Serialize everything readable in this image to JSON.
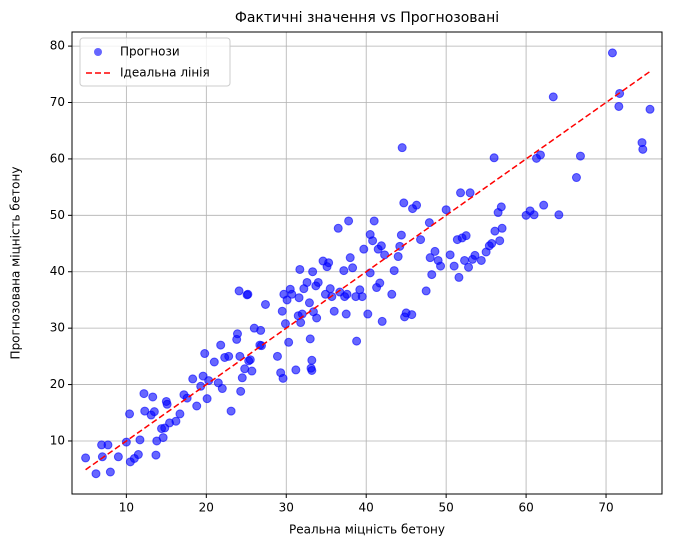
{
  "chart_data": {
    "type": "scatter",
    "title": "Фактичні значення vs Прогнозовані",
    "x_label": "Реальна міцність бетону",
    "y_label": "Прогнозована міцність бетону",
    "xlim": [
      3.2,
      77
    ],
    "ylim": [
      0.6,
      82.5
    ],
    "xticks": [
      10,
      20,
      30,
      40,
      50,
      60,
      70
    ],
    "yticks": [
      10,
      20,
      30,
      40,
      50,
      60,
      70,
      80
    ],
    "grid": true,
    "legend": "upper left",
    "series": [
      {
        "name": "Прогнози",
        "color": "#0000ff",
        "kind": "points",
        "x": [
          4.9,
          6.2,
          6.9,
          7.0,
          7.7,
          8.0,
          9.0,
          10.0,
          10.4,
          10.5,
          11.0,
          11.5,
          11.7,
          12.2,
          12.3,
          13.1,
          13.3,
          13.5,
          13.7,
          13.8,
          14.4,
          14.6,
          14.8,
          15.0,
          15.1,
          15.4,
          16.2,
          16.7,
          17.2,
          17.6,
          18.3,
          18.8,
          19.3,
          19.6,
          19.8,
          20.1,
          20.3,
          21.0,
          21.5,
          21.8,
          22.0,
          22.3,
          22.8,
          23.1,
          23.8,
          23.9,
          24.1,
          24.2,
          24.3,
          24.5,
          24.8,
          25.1,
          25.2,
          25.3,
          25.5,
          25.7,
          26.0,
          26.8,
          26.7,
          26.9,
          27.4,
          28.9,
          29.3,
          29.5,
          29.6,
          29.7,
          29.9,
          30.1,
          30.3,
          30.5,
          30.7,
          31.2,
          31.5,
          31.6,
          31.7,
          31.8,
          32.0,
          32.2,
          32.6,
          32.9,
          33.0,
          33.1,
          33.2,
          33.2,
          33.3,
          33.4,
          33.7,
          33.8,
          34.0,
          34.6,
          34.9,
          35.1,
          35.3,
          35.5,
          35.7,
          36.0,
          36.5,
          36.7,
          37.2,
          37.3,
          37.5,
          37.6,
          37.8,
          38.0,
          38.3,
          38.8,
          38.7,
          39.2,
          39.5,
          39.7,
          40.2,
          40.5,
          40.5,
          40.8,
          41.0,
          41.3,
          41.5,
          41.7,
          41.9,
          42.0,
          42.3,
          43.2,
          43.5,
          44.0,
          44.2,
          44.4,
          44.5,
          44.7,
          44.8,
          45.0,
          45.7,
          45.8,
          46.3,
          46.8,
          47.5,
          47.9,
          48.0,
          48.2,
          48.6,
          49.0,
          49.3,
          50.0,
          50.5,
          51.0,
          51.4,
          51.6,
          51.8,
          52.0,
          52.3,
          52.5,
          52.8,
          53.0,
          53.3,
          53.6,
          54.4,
          55.0,
          55.4,
          55.7,
          56.0,
          56.1,
          56.5,
          56.7,
          56.9,
          57.0,
          60.0,
          60.5,
          61.0,
          61.3,
          61.8,
          62.2,
          63.4,
          64.1,
          66.3,
          66.8,
          70.8,
          71.6,
          71.7,
          74.5,
          74.6,
          75.5
        ],
        "values": [
          7.0,
          4.2,
          9.3,
          7.2,
          9.3,
          4.5,
          7.2,
          9.8,
          14.8,
          6.3,
          6.9,
          7.6,
          10.2,
          18.4,
          15.3,
          14.6,
          17.8,
          15.2,
          7.5,
          10.0,
          12.2,
          10.6,
          12.3,
          17.0,
          16.5,
          13.2,
          13.5,
          14.8,
          18.2,
          17.6,
          21.0,
          16.2,
          19.7,
          21.5,
          25.5,
          17.5,
          20.7,
          24.0,
          20.3,
          27.0,
          19.3,
          24.8,
          25.0,
          15.3,
          28.0,
          29.0,
          36.6,
          25.0,
          18.8,
          21.2,
          22.8,
          35.9,
          36.0,
          24.2,
          24.4,
          22.4,
          30.0,
          29.6,
          27.0,
          26.9,
          34.2,
          25.0,
          22.1,
          33.0,
          21.1,
          36.0,
          30.8,
          35.0,
          27.5,
          36.9,
          36.0,
          22.6,
          32.2,
          35.4,
          40.4,
          31.0,
          32.5,
          37.0,
          38.1,
          34.5,
          28.1,
          22.9,
          22.5,
          24.3,
          40.0,
          32.9,
          37.5,
          31.8,
          38.1,
          41.9,
          36.0,
          40.9,
          41.6,
          37.0,
          35.6,
          33.0,
          47.7,
          36.4,
          40.2,
          35.6,
          32.5,
          36.0,
          49.0,
          42.5,
          40.7,
          27.7,
          35.6,
          36.8,
          35.6,
          44.0,
          32.5,
          46.6,
          39.8,
          45.5,
          49.0,
          37.2,
          44.0,
          38.0,
          44.6,
          31.2,
          43.0,
          36.0,
          40.2,
          42.7,
          44.5,
          46.5,
          62.0,
          52.2,
          32.0,
          32.7,
          32.4,
          51.2,
          51.8,
          45.7,
          36.6,
          48.7,
          42.5,
          39.5,
          43.6,
          42.0,
          41.0,
          51.0,
          43.0,
          41.0,
          45.7,
          39.0,
          54.0,
          46.0,
          42.0,
          46.4,
          40.8,
          54.0,
          42.2,
          42.9,
          42.0,
          43.5,
          44.6,
          45.0,
          60.2,
          47.2,
          50.5,
          45.5,
          51.5,
          47.7,
          50.0,
          50.8,
          50.1,
          60.1,
          60.7,
          51.8,
          71.0,
          50.1,
          56.7,
          60.5,
          78.8,
          69.3,
          71.6,
          62.9,
          61.7,
          68.8
        ]
      },
      {
        "name": "Ідеальна лінія",
        "color": "#ff0000",
        "kind": "dashed-line",
        "x": [
          4.9,
          75.5
        ],
        "values": [
          4.9,
          75.5
        ]
      }
    ]
  }
}
